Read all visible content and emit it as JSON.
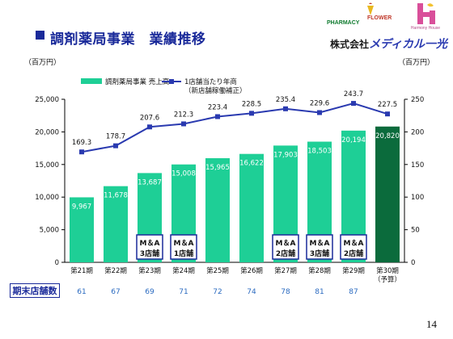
{
  "slide": {
    "title": "調剤薬局事業　業績推移",
    "page_number": "14",
    "company_prefix": "株式会社",
    "company_brand": "メディカル一光",
    "logo1_main": "PHARMACY",
    "logo1_accent": "FLOWER",
    "logo2_text": "Harmony House",
    "store_count_label": "期末店舗数"
  },
  "chart_data": {
    "type": "bar",
    "left_unit": "（百万円）",
    "right_unit": "（百万円）",
    "categories": [
      "第21期",
      "第22期",
      "第23期",
      "第24期",
      "第25期",
      "第26期",
      "第27期",
      "第28期",
      "第29期",
      "第30期"
    ],
    "category_notes": [
      "",
      "",
      "",
      "",
      "",
      "",
      "",
      "",
      "",
      "（予算）"
    ],
    "left_ylim": [
      0,
      25000
    ],
    "left_ticks": [
      "0",
      "5,000",
      "10,000",
      "15,000",
      "20,000",
      "25,000"
    ],
    "right_ylim": [
      0,
      250
    ],
    "right_ticks": [
      "0",
      "50",
      "100",
      "150",
      "200",
      "250"
    ],
    "series": [
      {
        "name": "調剤薬局事業 売上高",
        "type": "bar",
        "axis": "left",
        "color": "#1ecf96",
        "budget_color": "#0b6b3c",
        "values": [
          9967,
          11678,
          13687,
          15008,
          15965,
          16622,
          17903,
          18503,
          20194,
          20820
        ],
        "labels": [
          "9,967",
          "11,678",
          "13,687",
          "15,008",
          "15,965",
          "16,622",
          "17,903",
          "18,503",
          "20,194",
          "20,820"
        ]
      },
      {
        "name": "1店舗当たり年商",
        "name_note": "（新店舗稼働補正）",
        "type": "line",
        "axis": "right",
        "color": "#2a3ab0",
        "values": [
          169.3,
          178.7,
          207.6,
          212.3,
          223.4,
          228.5,
          235.4,
          229.6,
          243.7,
          227.5
        ],
        "labels": [
          "169.3",
          "178.7",
          "207.6",
          "212.3",
          "223.4",
          "228.5",
          "235.4",
          "229.6",
          "243.7",
          "227.5"
        ]
      }
    ],
    "annotations": [
      {
        "category_index": 2,
        "lines": [
          "M＆A",
          "3店舗"
        ]
      },
      {
        "category_index": 3,
        "lines": [
          "M＆A",
          "1店舗"
        ]
      },
      {
        "category_index": 6,
        "lines": [
          "M＆A",
          "2店舗"
        ]
      },
      {
        "category_index": 7,
        "lines": [
          "M＆A",
          "3店舗"
        ]
      },
      {
        "category_index": 8,
        "lines": [
          "M＆A",
          "2店舗"
        ]
      }
    ],
    "store_counts": [
      "61",
      "67",
      "69",
      "71",
      "72",
      "74",
      "78",
      "81",
      "87",
      ""
    ],
    "legend_position": "top",
    "grid": false
  }
}
